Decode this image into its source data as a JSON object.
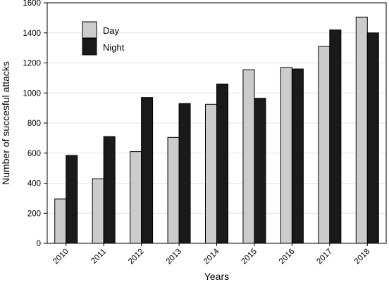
{
  "chart_data": {
    "type": "bar",
    "categories": [
      "2010",
      "2011",
      "2012",
      "2013",
      "2014",
      "2015",
      "2016",
      "2017",
      "2018"
    ],
    "series": [
      {
        "name": "Day",
        "values": [
          295,
          430,
          610,
          705,
          925,
          1155,
          1170,
          1310,
          1505
        ],
        "color": "#cccccc"
      },
      {
        "name": "Night",
        "values": [
          585,
          710,
          970,
          930,
          1060,
          965,
          1160,
          1420,
          1400
        ],
        "color": "#1a1a1a"
      }
    ],
    "title": "",
    "xlabel": "Years",
    "ylabel": "Number of succesful attacks",
    "ylim": [
      0,
      1600
    ],
    "yticks": [
      0,
      200,
      400,
      600,
      800,
      1000,
      1200,
      1400,
      1600
    ],
    "grid": true,
    "legend_position": "top-left"
  }
}
